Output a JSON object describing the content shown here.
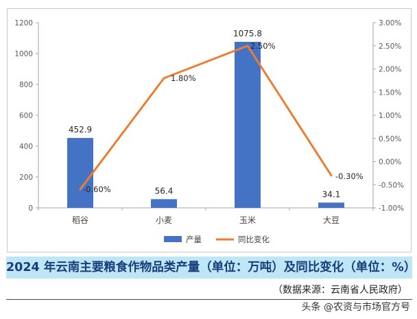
{
  "chart_data": {
    "type": "bar+line",
    "categories": [
      "稻谷",
      "小麦",
      "玉米",
      "大豆"
    ],
    "series": [
      {
        "name": "产量",
        "type": "bar",
        "axis": "left",
        "values": [
          452.9,
          56.4,
          1075.8,
          34.1
        ],
        "labels": [
          "452.9",
          "56.4",
          "1075.8",
          "34.1"
        ],
        "color": "#4472c4"
      },
      {
        "name": "同比变化",
        "type": "line",
        "axis": "right",
        "values": [
          -0.6,
          1.8,
          2.5,
          -0.3
        ],
        "labels": [
          "-0.60%",
          "1.80%",
          "2.50%",
          "-0.30%"
        ],
        "color": "#ed7d31"
      }
    ],
    "y_left": {
      "min": 0,
      "max": 1200,
      "ticks": [
        "0",
        "200",
        "400",
        "600",
        "800",
        "1000",
        "1200"
      ]
    },
    "y_right": {
      "min": -1.0,
      "max": 3.0,
      "ticks": [
        "-1.00%",
        "-0.50%",
        "0.00%",
        "0.50%",
        "1.00%",
        "1.50%",
        "2.00%",
        "2.50%",
        "3.00%"
      ]
    },
    "grid": false,
    "legend_position": "bottom"
  },
  "caption": "2024 年云南主要粮食作物品类产量（单位：万吨）及同比变化（单位：%）",
  "source": "（数据来源：云南省人民政府）",
  "watermark": "头条 @农资与市场官方号"
}
